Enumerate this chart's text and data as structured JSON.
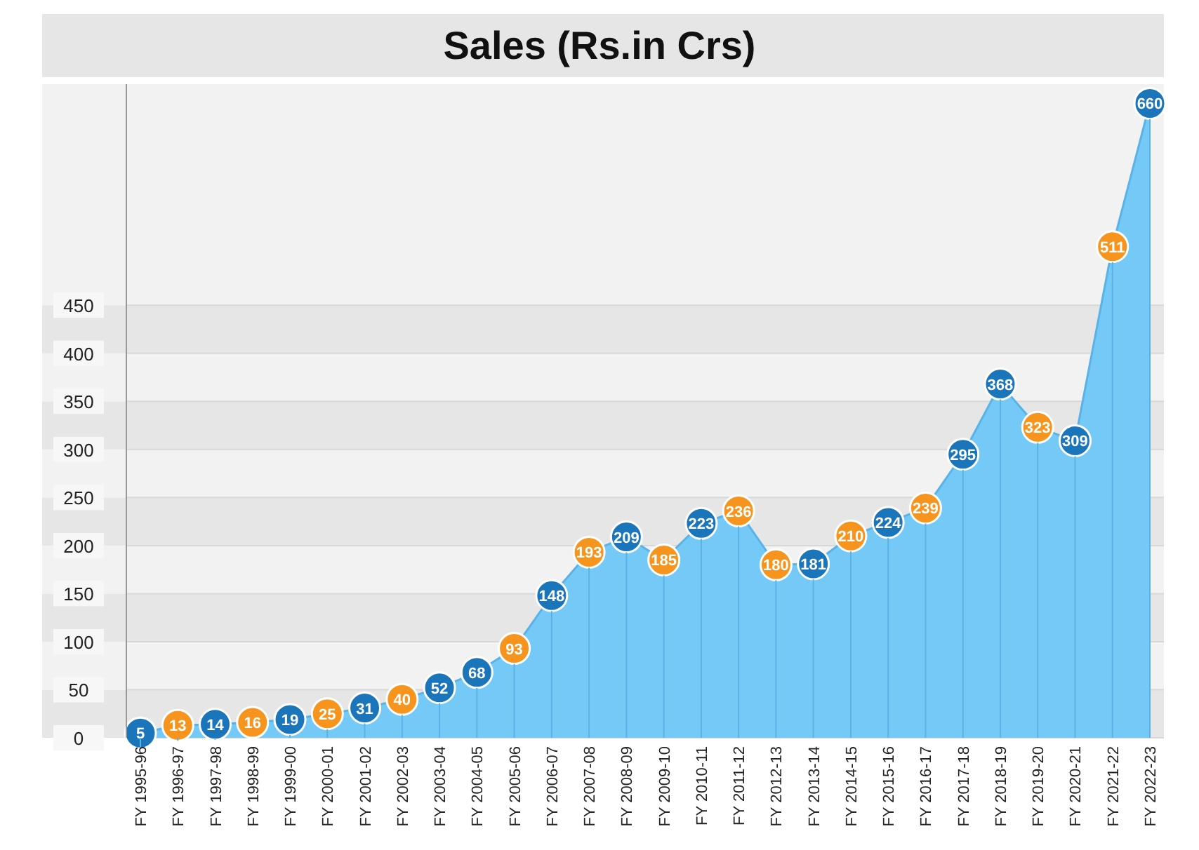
{
  "chart_data": {
    "type": "area",
    "title": "Sales (Rs.in Crs)",
    "categories": [
      "FY 1995-96",
      "FY 1996-97",
      "FY 1997-98",
      "FY 1998-99",
      "FY 1999-00",
      "FY 2000-01",
      "FY 2001-02",
      "FY 2002-03",
      "FY 2003-04",
      "FY 2004-05",
      "FY 2005-06",
      "FY 2006-07",
      "FY 2007-08",
      "FY 2008-09",
      "FY 2009-10",
      "FY 2010-11",
      "FY 2011-12",
      "FY 2012-13",
      "FY 2013-14",
      "FY 2014-15",
      "FY 2015-16",
      "FY 2016-17",
      "FY 2017-18",
      "FY 2018-19",
      "FY 2019-20",
      "FY 2020-21",
      "FY 2021-22",
      "FY 2022-23"
    ],
    "series": [
      {
        "color": "#74c9f7",
        "values": [
          5,
          13,
          14,
          16,
          19,
          25,
          31,
          40,
          52,
          68,
          93,
          148,
          193,
          209,
          185,
          223,
          236,
          180,
          181,
          210,
          224,
          239,
          295,
          368,
          323,
          309,
          511,
          660
        ],
        "colors": [
          "#1b75bb",
          "#f7941d",
          "#1b75bb",
          "#f7941d",
          "#1b75bb",
          "#f7941d",
          "#1b75bb",
          "#f7941d",
          "#1b75bb",
          "#1b75bb",
          "#f7941d",
          "#1b75bb",
          "#f7941d",
          "#1b75bb",
          "#f7941d",
          "#1b75bb",
          "#f7941d",
          "#f7941d",
          "#1b75bb",
          "#f7941d",
          "#1b75bb",
          "#f7941d",
          "#1b75bb",
          "#1b75bb",
          "#f7941d",
          "#1b75bb",
          "#f7941d",
          "#1b75bb"
        ]
      }
    ],
    "ylim": [
      0,
      680
    ],
    "yticks": [
      0,
      50,
      100,
      150,
      200,
      250,
      300,
      350,
      400,
      450
    ],
    "grid": true,
    "marker": "circle",
    "data_labels": true
  }
}
